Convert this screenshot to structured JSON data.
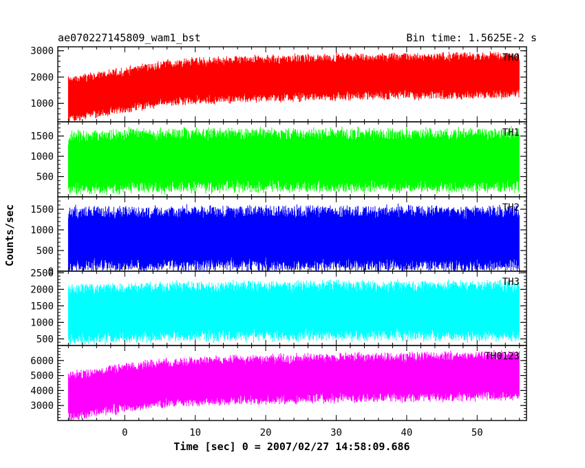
{
  "header": {
    "title": "ae070227145809_wam1_bst",
    "bin_time": "Bin time: 1.5625E-2 s"
  },
  "chart_data": {
    "type": "line",
    "title": "ae070227145809_wam1_bst",
    "xlabel": "Time [sec] 0 = 2007/02/27 14:58:09.686",
    "ylabel": "Counts/sec",
    "xlim": [
      -9.5,
      57
    ],
    "x_ticks": [
      0,
      10,
      20,
      30,
      40,
      50
    ],
    "x_tick_labels": [
      "0",
      "10",
      "20",
      "30",
      "40",
      "50"
    ],
    "x_data_range": [
      -8,
      56
    ],
    "bin_time_s": 0.015625,
    "panels": [
      {
        "name": "TH0",
        "color": "#ff0000",
        "ylim": [
          300,
          3150
        ],
        "y_ticks": [
          1000,
          2000,
          3000
        ],
        "y_tick_labels": [
          "1000",
          "2000",
          "3000"
        ],
        "trend": {
          "x": [
            -8,
            0,
            5,
            10,
            20,
            30,
            40,
            50,
            56
          ],
          "y": [
            1150,
            1500,
            1750,
            1850,
            1950,
            2000,
            2050,
            2050,
            2100
          ]
        },
        "spread": 1450
      },
      {
        "name": "TH1",
        "color": "#00ff00",
        "ylim": [
          0,
          1850
        ],
        "y_ticks": [
          500,
          1000,
          1500
        ],
        "y_tick_labels": [
          "500",
          "1000",
          "1500"
        ],
        "trend": {
          "x": [
            -8,
            0,
            10,
            20,
            30,
            40,
            50,
            56
          ],
          "y": [
            830,
            880,
            900,
            900,
            900,
            900,
            900,
            900
          ]
        },
        "spread": 1300
      },
      {
        "name": "TH2",
        "color": "#0000ff",
        "ylim": [
          0,
          1800
        ],
        "y_ticks": [
          0,
          500,
          1000,
          1500
        ],
        "y_tick_labels": [
          "0",
          "500",
          "1000",
          "1500"
        ],
        "trend": {
          "x": [
            -8,
            0,
            10,
            20,
            30,
            40,
            50,
            56
          ],
          "y": [
            780,
            780,
            790,
            790,
            790,
            790,
            790,
            790
          ]
        },
        "spread": 1300
      },
      {
        "name": "TH3",
        "color": "#00ffff",
        "ylim": [
          300,
          2550
        ],
        "y_ticks": [
          500,
          1000,
          1500,
          2000,
          2500
        ],
        "y_tick_labels": [
          "500",
          "1000",
          "1500",
          "2000",
          "2500"
        ],
        "trend": {
          "x": [
            -8,
            0,
            10,
            20,
            30,
            40,
            50,
            56
          ],
          "y": [
            1250,
            1300,
            1330,
            1350,
            1350,
            1350,
            1350,
            1350
          ]
        },
        "spread": 1500
      },
      {
        "name": "TH0123",
        "color": "#ff00ff",
        "ylim": [
          2000,
          7000
        ],
        "y_ticks": [
          3000,
          4000,
          5000,
          6000
        ],
        "y_tick_labels": [
          "3000",
          "4000",
          "5000",
          "6000"
        ],
        "trend": {
          "x": [
            -8,
            0,
            5,
            10,
            20,
            30,
            40,
            50,
            56
          ],
          "y": [
            3600,
            4200,
            4500,
            4600,
            4750,
            4850,
            4900,
            4950,
            5000
          ]
        },
        "spread": 2700
      }
    ]
  }
}
